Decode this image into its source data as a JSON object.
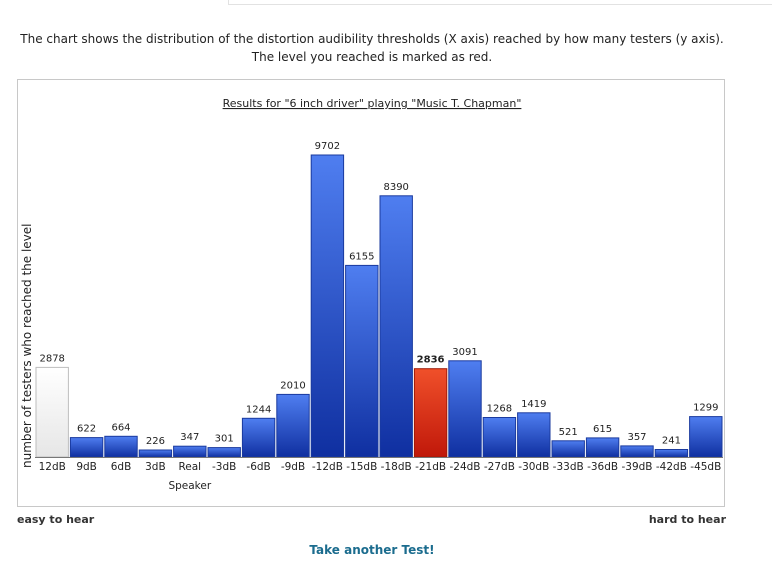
{
  "description": {
    "line1": "The chart shows the distribution of the distortion audibility thresholds (X axis) reached by how many testers (y axis).",
    "line2": "The level you reached is marked as red."
  },
  "footer": {
    "easy_label": "easy to hear",
    "hard_label": "hard to hear",
    "again_link": "Take another Test!"
  },
  "colors": {
    "bar": "#1f48c0",
    "highlight": "#e02a10",
    "first": "#f2f2f2"
  },
  "chart_data": {
    "type": "bar",
    "title": "Results for \"6 inch driver\" playing \"Music T. Chapman\"",
    "ylabel": "number of testers who reached the level",
    "xlabel": "",
    "categories": [
      "12dB",
      "9dB",
      "6dB",
      "3dB",
      "Real Speaker",
      "-3dB",
      "-6dB",
      "-9dB",
      "-12dB",
      "-15dB",
      "-18dB",
      "-21dB",
      "-24dB",
      "-27dB",
      "-30dB",
      "-33dB",
      "-36dB",
      "-39dB",
      "-42dB",
      "-45dB"
    ],
    "values": [
      2878,
      622,
      664,
      226,
      347,
      301,
      1244,
      2010,
      9702,
      6155,
      8390,
      2836,
      3091,
      1268,
      1419,
      521,
      615,
      357,
      241,
      1299
    ],
    "highlight_index": 11,
    "ylim": [
      0,
      9702
    ],
    "grid": false,
    "legend": "none"
  }
}
